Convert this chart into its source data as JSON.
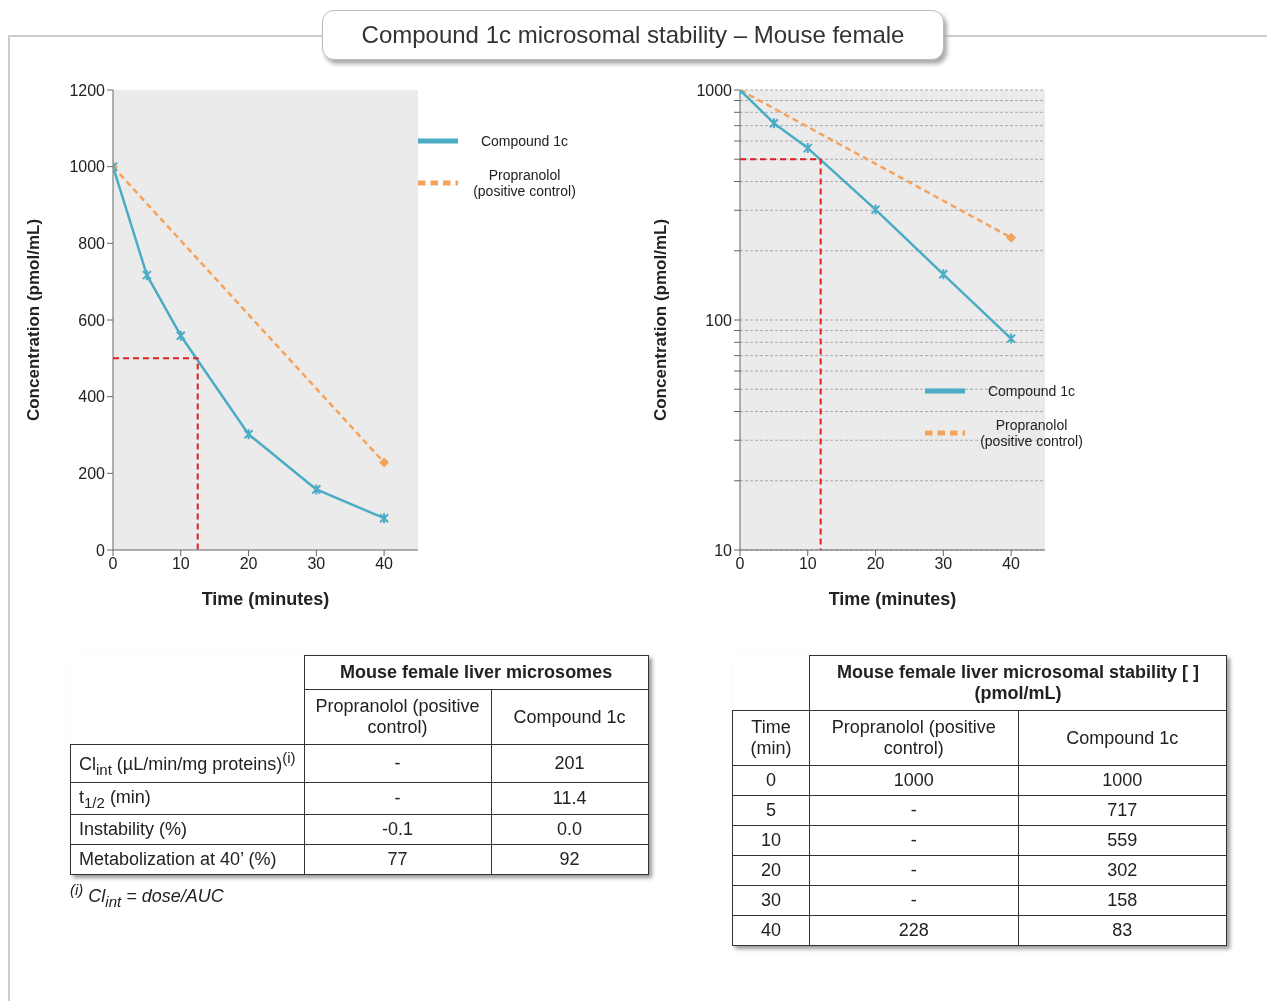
{
  "chart_data": [
    {
      "type": "line",
      "title": "Compound 1c microsomal stability – Mouse female",
      "xlabel": "Time (minutes)",
      "ylabel": "Concentration (pmol/mL)",
      "xlim": [
        0,
        45
      ],
      "xticks": [
        0,
        10,
        20,
        30,
        40
      ],
      "ylim": [
        0,
        1200
      ],
      "yticks": [
        0,
        200,
        400,
        600,
        800,
        1000,
        1200
      ],
      "legend": "top right",
      "series": [
        {
          "name": "Propranolol (positive control)",
          "color": "#f5a35c",
          "line_style": "dashed",
          "marker": "diamond",
          "x": [
            0,
            40
          ],
          "values": [
            1000,
            228
          ]
        },
        {
          "name": "Compound 1c",
          "color": "#4bacc6",
          "line_style": "solid",
          "marker": "cross",
          "x": [
            0,
            5,
            10,
            20,
            30,
            40
          ],
          "values": [
            1000,
            717,
            559,
            302,
            158,
            83
          ]
        },
        {
          "color": "#e02020",
          "line_style": "dashed",
          "marker": "none",
          "x": [
            0,
            12.5,
            12.5
          ],
          "values": [
            500,
            500,
            0
          ]
        }
      ]
    },
    {
      "type": "line",
      "xlabel": "Time (minutes)",
      "ylabel": "Concentration (pmol/mL)",
      "log": true,
      "grid": "y",
      "xlim": [
        0,
        45
      ],
      "xticks": [
        0,
        10,
        20,
        30,
        40
      ],
      "ylim": [
        10,
        1000
      ],
      "yticks": [
        10,
        {
          "value": 20,
          "label": null
        },
        {
          "value": 30,
          "label": null
        },
        {
          "value": 40,
          "label": null
        },
        {
          "value": 50,
          "label": null
        },
        {
          "value": 60,
          "label": null
        },
        {
          "value": 70,
          "label": null
        },
        {
          "value": 80,
          "label": null
        },
        {
          "value": 90,
          "label": null
        },
        100,
        {
          "value": 200,
          "label": null
        },
        {
          "value": 300,
          "label": null
        },
        {
          "value": 400,
          "label": null
        },
        {
          "value": 500,
          "label": null
        },
        {
          "value": 600,
          "label": null
        },
        {
          "value": 700,
          "label": null
        },
        {
          "value": 800,
          "label": null
        },
        {
          "value": 900,
          "label": null
        },
        1000
      ],
      "legend": "right",
      "series": [
        {
          "name": "Propranolol (positive control)",
          "color": "#f5a35c",
          "line_style": "dashed",
          "marker": "diamond",
          "x": [
            0,
            40
          ],
          "values": [
            1000,
            228
          ]
        },
        {
          "name": "Compound 1c",
          "color": "#4bacc6",
          "line_style": "solid",
          "marker": "cross",
          "x": [
            0,
            5,
            10,
            20,
            30,
            40
          ],
          "values": [
            1000,
            717,
            559,
            302,
            158,
            83
          ]
        },
        {
          "color": "#e02020",
          "line_style": "dashed",
          "marker": "none",
          "x": [
            0,
            11.9,
            11.9
          ],
          "values": [
            500,
            500,
            10
          ]
        }
      ]
    },
    {
      "type": "other",
      "title": "Mouse female liver microsomes",
      "categories": [
        "Propranolol (positive control)",
        "Compound 1c"
      ],
      "y_categories": [
        "Cl$_{int}$ (µL/min/mg proteins)$^{(i)}$",
        "t$_{1/2}$ (min)",
        "Instability (%)",
        "Metabolization at 40’ (%)"
      ],
      "cell_labels": [
        [
          "-",
          "201"
        ],
        [
          "-",
          "11.4"
        ],
        [
          "-0.1",
          "0.0"
        ],
        [
          "77",
          "92"
        ]
      ],
      "annotations": [
        "$^{(i)}$ Cl$_{int}$ = dose/AUC"
      ]
    },
    {
      "type": "other",
      "title": "Mouse female liver microsomal stability [ ] (pmol/mL)",
      "ylabel": "Time (min)",
      "categories": [
        "Propranolol (positive control)",
        "Compound 1c"
      ],
      "y_categories": [
        "0",
        "5",
        "10",
        "20",
        "30",
        "40"
      ],
      "cell_labels": [
        [
          "1000",
          "1000"
        ],
        [
          "-",
          "717"
        ],
        [
          "-",
          "559"
        ],
        [
          "-",
          "302"
        ],
        [
          "-",
          "158"
        ],
        [
          "228",
          "83"
        ]
      ]
    }
  ]
}
